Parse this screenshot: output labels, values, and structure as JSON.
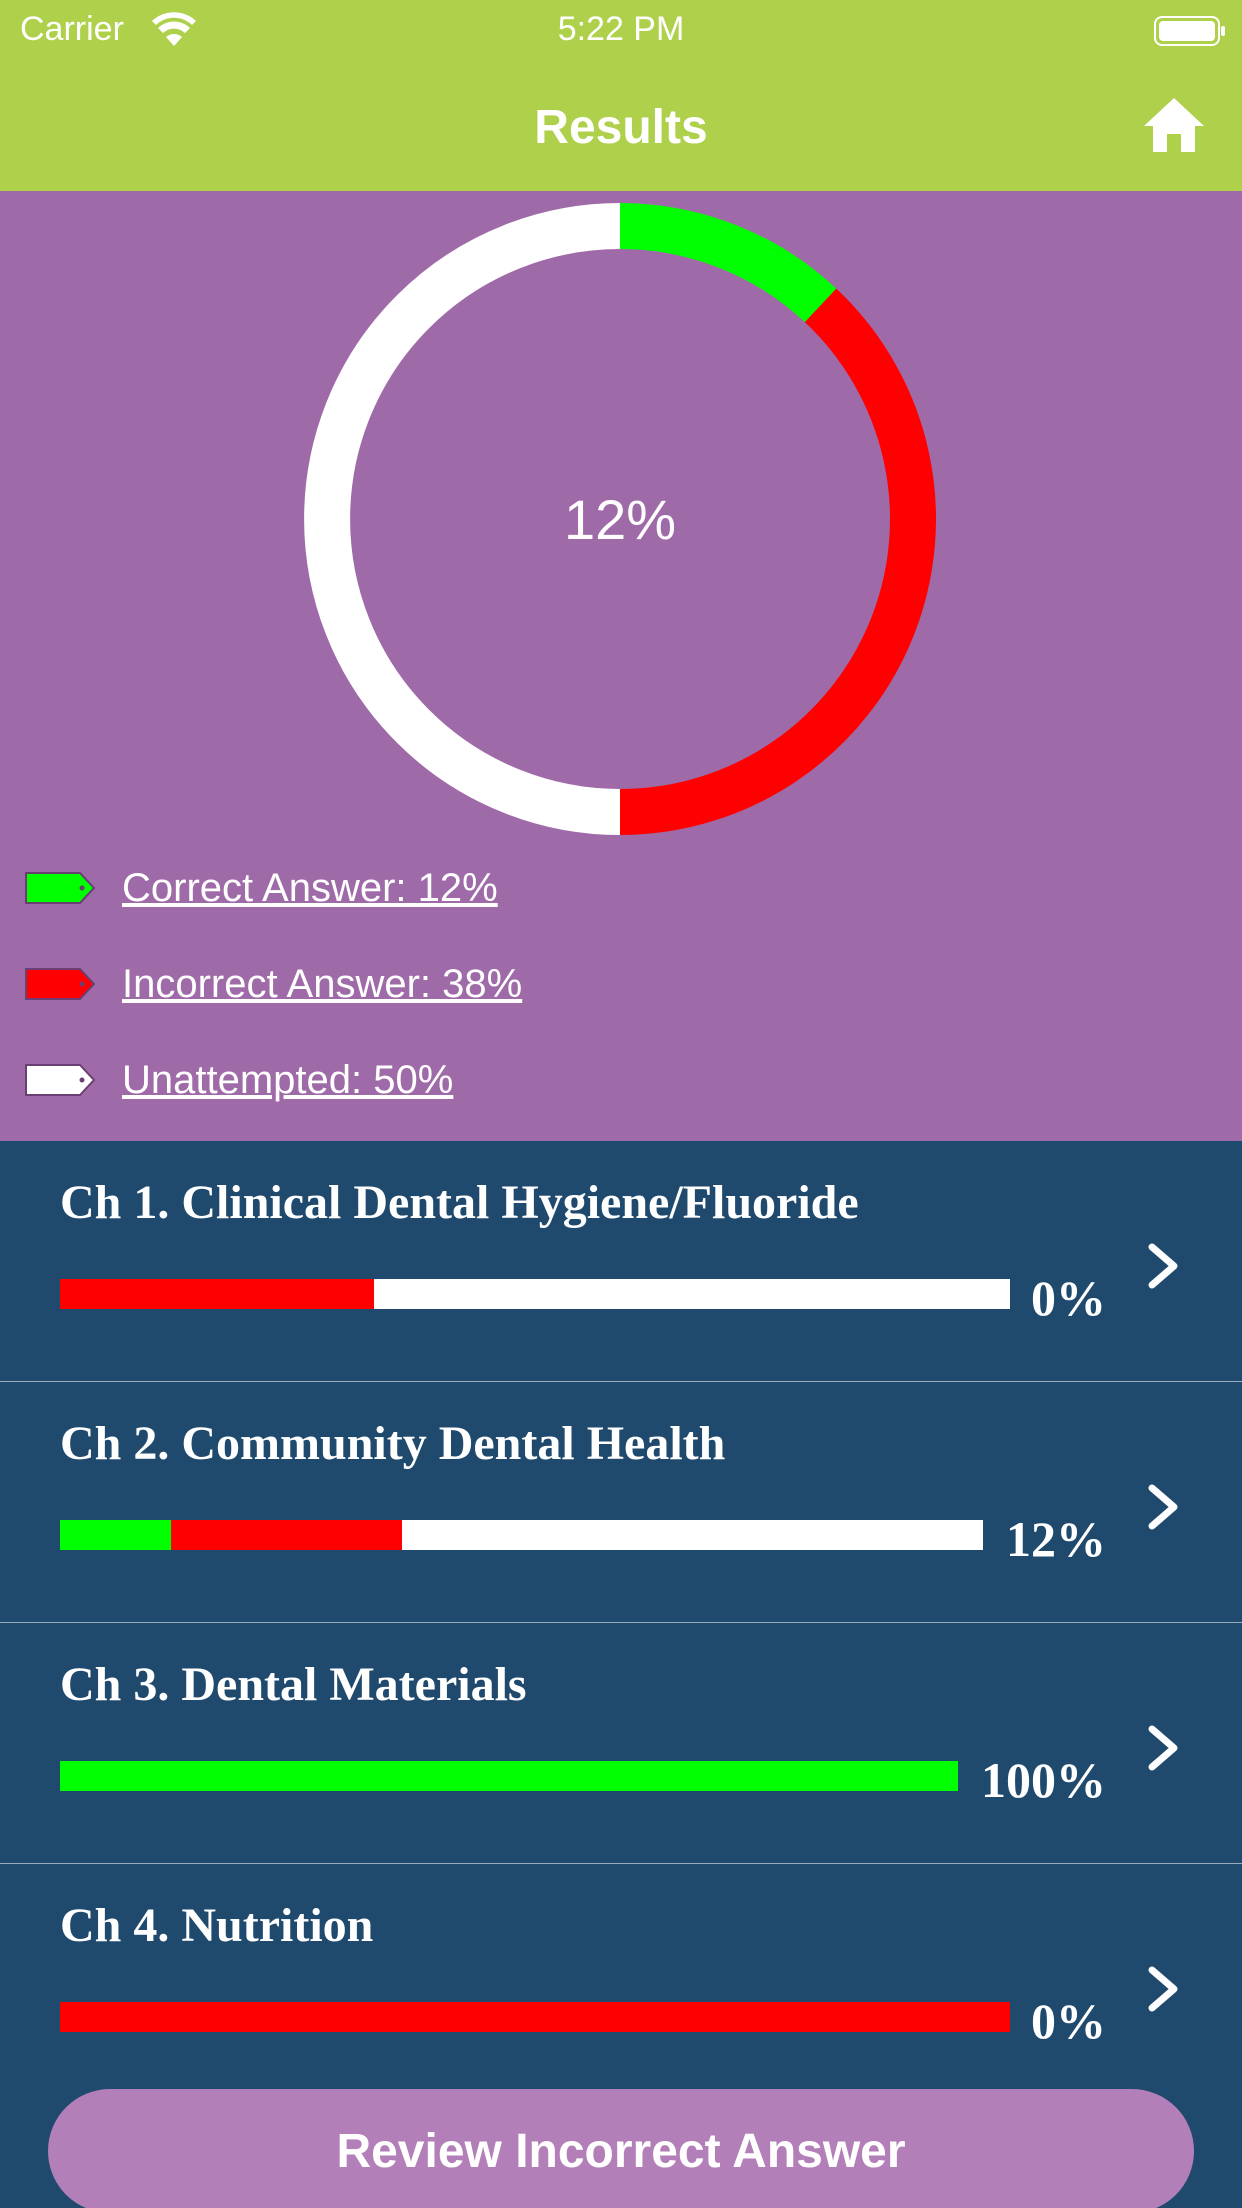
{
  "status_bar": {
    "carrier": "Carrier",
    "time": "5:22 PM"
  },
  "nav": {
    "title": "Results"
  },
  "summary": {
    "score_label": "12%",
    "correct_fraction": 0.12,
    "incorrect_fraction": 0.38,
    "unattempted_fraction": 0.5,
    "legend": {
      "correct": "Correct Answer: 12%",
      "incorrect": "Incorrect Answer: 38%",
      "unattempted": "Unattempted: 50%"
    },
    "colors": {
      "correct": "#00ff00",
      "incorrect": "#ff0000",
      "unattempted": "#ffffff"
    }
  },
  "chapters": [
    {
      "title": "Ch 1. Clinical Dental Hygiene/Fluoride",
      "percent": "0%",
      "correct": 0,
      "incorrect": 0.33,
      "unattempted": 0.67
    },
    {
      "title": "Ch 2. Community Dental Health",
      "percent": "12%",
      "correct": 0.12,
      "incorrect": 0.25,
      "unattempted": 0.63
    },
    {
      "title": "Ch 3. Dental Materials",
      "percent": "100%",
      "correct": 1.0,
      "incorrect": 0,
      "unattempted": 0
    },
    {
      "title": "Ch 4. Nutrition",
      "percent": "0%",
      "correct": 0,
      "incorrect": 1.0,
      "unattempted": 0
    }
  ],
  "review_button": {
    "label": "Review Incorrect Answer"
  },
  "icons": {
    "home": "home-icon",
    "chevron": "chevron-right-icon",
    "wifi": "wifi-icon",
    "battery": "battery-icon"
  }
}
